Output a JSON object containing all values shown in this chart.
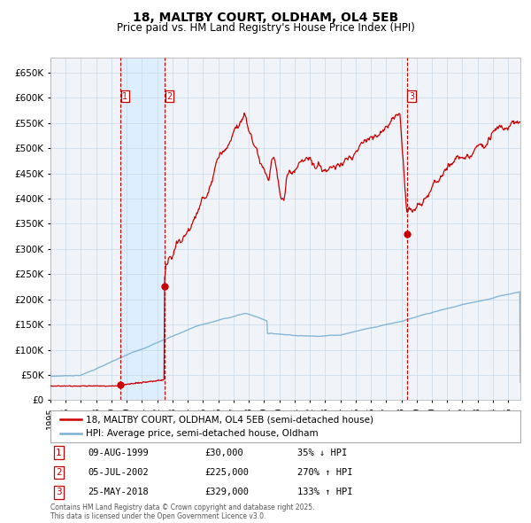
{
  "title": "18, MALTBY COURT, OLDHAM, OL4 5EB",
  "subtitle": "Price paid vs. HM Land Registry's House Price Index (HPI)",
  "title_fontsize": 10,
  "subtitle_fontsize": 8.5,
  "xlim_start": 1995.0,
  "xlim_end": 2025.8,
  "ylim_min": 0,
  "ylim_max": 680000,
  "transactions": [
    {
      "label": "1",
      "date_num": 1999.6,
      "price": 30000
    },
    {
      "label": "2",
      "date_num": 2002.5,
      "price": 225000
    },
    {
      "label": "3",
      "date_num": 2018.38,
      "price": 329000
    }
  ],
  "legend_line1": "18, MALTBY COURT, OLDHAM, OL4 5EB (semi-detached house)",
  "legend_line2": "HPI: Average price, semi-detached house, Oldham",
  "table_rows": [
    {
      "num": "1",
      "date": "09-AUG-1999",
      "price": "£30,000",
      "change": "35% ↓ HPI"
    },
    {
      "num": "2",
      "date": "05-JUL-2002",
      "price": "£225,000",
      "change": "270% ↑ HPI"
    },
    {
      "num": "3",
      "date": "25-MAY-2018",
      "price": "£329,000",
      "change": "133% ↑ HPI"
    }
  ],
  "footer": "Contains HM Land Registry data © Crown copyright and database right 2025.\nThis data is licensed under the Open Government Licence v3.0.",
  "red_color": "#cc0000",
  "blue_color": "#7ab0d4",
  "shade_color": "#ddeeff",
  "grid_color": "#c8d8e8",
  "bg_color": "#f0f4f8"
}
